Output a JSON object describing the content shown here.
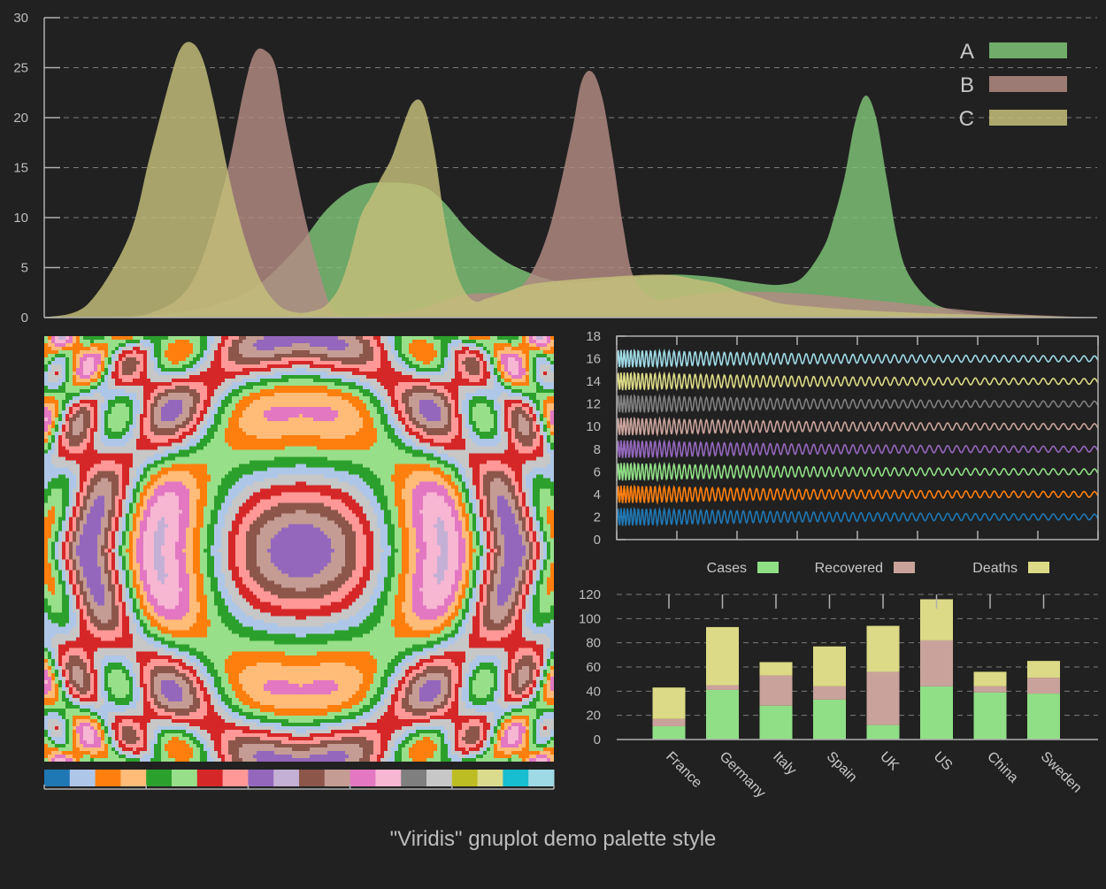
{
  "caption": "\"Viridis\" gnuplot demo palette style",
  "colors": {
    "background": "#212121",
    "A": "#7fc477",
    "B": "#b38b84",
    "C": "#c4c07a",
    "cases": "#90df86",
    "recovered": "#c9a39b",
    "deaths": "#dcda86"
  },
  "chart_data": [
    {
      "type": "area",
      "yticks": [
        0,
        5,
        10,
        15,
        20,
        25,
        30
      ],
      "ylim": [
        0,
        30
      ],
      "xlim": [
        0,
        100
      ],
      "grid": true,
      "legend_position": "top-right",
      "series": [
        {
          "name": "A",
          "color": "#7fc477",
          "x": [
            0,
            4,
            8,
            12,
            16,
            20,
            24,
            27,
            30,
            33,
            36,
            38,
            40,
            42,
            44,
            46,
            48,
            50,
            52,
            54,
            56,
            58,
            60,
            62,
            64,
            66,
            68,
            70,
            72,
            74,
            75,
            76,
            77,
            78,
            79,
            80,
            81,
            82,
            84,
            86,
            88,
            90,
            94,
            100
          ],
          "y": [
            0,
            0,
            0.1,
            0.4,
            1.2,
            3,
            7,
            11,
            13.2,
            13.5,
            13.1,
            11.5,
            9,
            7,
            5.5,
            4.5,
            3.8,
            3.5,
            3.6,
            3.9,
            4.1,
            4.2,
            4.3,
            4.2,
            4,
            3.7,
            3.4,
            3.3,
            4,
            7,
            10,
            14,
            19.5,
            22.2,
            20,
            14,
            8,
            4.5,
            1.8,
            0.8,
            0.4,
            0.2,
            0.1,
            0
          ]
        },
        {
          "name": "B",
          "color": "#b38b84",
          "x": [
            0,
            6,
            10,
            14,
            17,
            19,
            20,
            21,
            22,
            23,
            25,
            27,
            28,
            30,
            32,
            34,
            36,
            40,
            44,
            46,
            48,
            50,
            51,
            52,
            53,
            54,
            55,
            56,
            58,
            60,
            62,
            66,
            72,
            80,
            90,
            100
          ],
          "y": [
            0,
            0,
            0.4,
            3.5,
            13,
            23,
            26.5,
            26.7,
            25,
            19,
            9,
            1.6,
            0.2,
            0.1,
            0.2,
            0.5,
            1,
            2.3,
            2.6,
            4,
            9,
            18,
            23.5,
            24.6,
            22,
            16,
            9,
            4,
            1.9,
            2,
            2.3,
            2.6,
            2.4,
            1.6,
            0.5,
            0
          ]
        },
        {
          "name": "C",
          "color": "#c4c07a",
          "x": [
            0,
            4,
            8,
            10,
            12,
            13,
            14,
            15,
            16,
            18,
            20,
            22,
            24,
            26,
            27,
            28,
            29,
            30,
            31,
            32,
            33,
            34,
            35,
            36,
            37,
            38,
            39,
            40,
            41,
            42,
            44,
            46,
            50,
            54,
            58,
            60,
            62,
            64,
            66,
            68,
            70,
            74,
            80,
            88,
            100
          ],
          "y": [
            0,
            1.2,
            8,
            16,
            24,
            27,
            27.5,
            26,
            22,
            12,
            5,
            1.5,
            0.5,
            0.8,
            1.5,
            3,
            6,
            10,
            12,
            14,
            16,
            19,
            21.5,
            21.3,
            17,
            10,
            5,
            2.5,
            1.6,
            1.9,
            2.6,
            3.3,
            3.8,
            4.1,
            4.3,
            4.2,
            3.8,
            3.4,
            2.6,
            2,
            1.4,
            1,
            0.6,
            0.3,
            0
          ]
        }
      ]
    },
    {
      "type": "line",
      "yticks": [
        0,
        2,
        4,
        6,
        8,
        10,
        12,
        14,
        16,
        18
      ],
      "ylim": [
        0,
        18
      ],
      "grid": false,
      "series": [
        {
          "offset": 2,
          "color": "#1f77b4"
        },
        {
          "offset": 4,
          "color": "#ff7f0e"
        },
        {
          "offset": 6,
          "color": "#90df86"
        },
        {
          "offset": 8,
          "color": "#9467bd"
        },
        {
          "offset": 10,
          "color": "#c9a39b"
        },
        {
          "offset": 12,
          "color": "#7f7f7f"
        },
        {
          "offset": 14,
          "color": "#dcda86"
        },
        {
          "offset": 16,
          "color": "#9edae5"
        }
      ]
    },
    {
      "type": "bar",
      "stacked": true,
      "categories": [
        "France",
        "Germany",
        "Italy",
        "Spain",
        "UK",
        "US",
        "China",
        "Sweden"
      ],
      "yticks": [
        0,
        20,
        40,
        60,
        80,
        100,
        120
      ],
      "ylim": [
        0,
        120
      ],
      "grid": true,
      "legend_position": "top",
      "series": [
        {
          "name": "Cases",
          "color": "#90df86",
          "values": [
            11,
            41,
            28,
            33,
            12,
            44,
            39,
            38
          ]
        },
        {
          "name": "Recovered",
          "color": "#c9a39b",
          "values": [
            6,
            4,
            25,
            11,
            44,
            38,
            5,
            13
          ]
        },
        {
          "name": "Deaths",
          "color": "#dcda86",
          "values": [
            26,
            48,
            11,
            33,
            38,
            34,
            12,
            14
          ]
        }
      ]
    }
  ],
  "heatmap_palette": [
    "#1f77b4",
    "#aec7e8",
    "#ff7f0e",
    "#ffbb78",
    "#2ca02c",
    "#98df8a",
    "#d62728",
    "#ff9896",
    "#9467bd",
    "#c5b0d5",
    "#8c564b",
    "#c49c94",
    "#e377c2",
    "#f7b6d2",
    "#7f7f7f",
    "#c7c7c7",
    "#bcbd22",
    "#dbdb8d",
    "#17becf",
    "#9edae5"
  ]
}
